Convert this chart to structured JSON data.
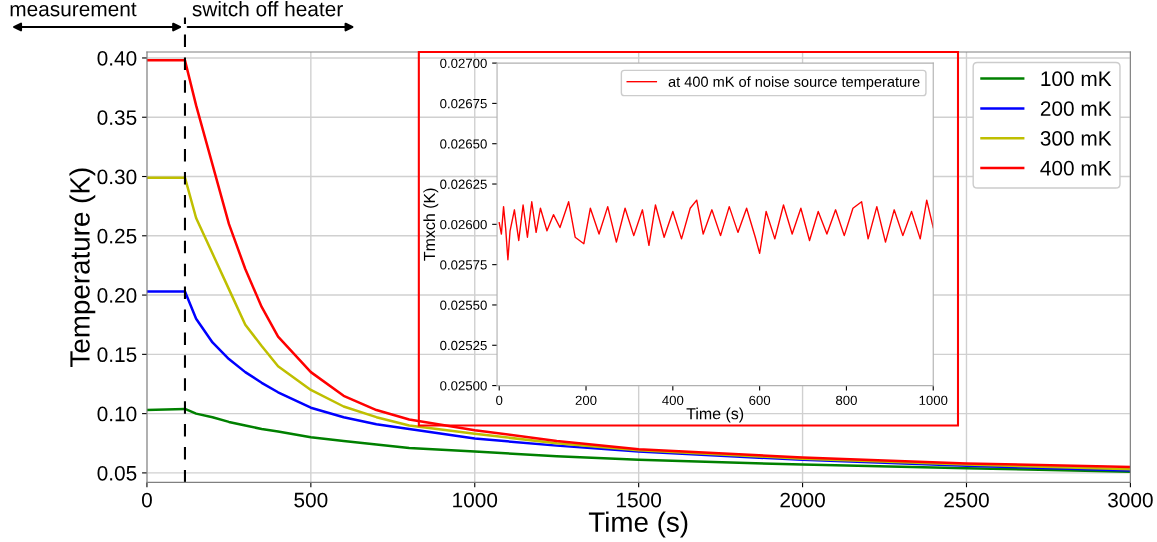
{
  "chart_data": [
    {
      "type": "line",
      "xlabel": "Time (s)",
      "ylabel": "Temperature (K)",
      "xlim": [
        0,
        3000
      ],
      "ylim": [
        0.042,
        0.405
      ],
      "xticks": [
        0,
        500,
        1000,
        1500,
        2000,
        2500,
        3000
      ],
      "yticks": [
        {
          "value": 0.05,
          "label": "0.05"
        },
        {
          "value": 0.1,
          "label": "0.10"
        },
        {
          "value": 0.15,
          "label": "0.15"
        },
        {
          "value": 0.2,
          "label": "0.20"
        },
        {
          "value": 0.25,
          "label": "0.25"
        },
        {
          "value": 0.3,
          "label": "0.30"
        },
        {
          "value": 0.35,
          "label": "0.35"
        },
        {
          "value": 0.4,
          "label": "0.40"
        }
      ],
      "grid": true,
      "legend": "top right",
      "line_style": "solid",
      "marker": "none",
      "x": [
        0,
        116,
        150,
        200,
        250,
        300,
        350,
        400,
        500,
        600,
        700,
        800,
        1000,
        1250,
        1500,
        2000,
        2500,
        3000
      ],
      "series": [
        {
          "name": "100 mK",
          "color": "#008000",
          "values": [
            0.103,
            0.104,
            0.1,
            0.097,
            0.093,
            0.09,
            0.087,
            0.085,
            0.08,
            0.077,
            0.074,
            0.071,
            0.068,
            0.064,
            0.061,
            0.057,
            0.054,
            0.051
          ]
        },
        {
          "name": "200 mK",
          "color": "#0000ff",
          "values": [
            0.203,
            0.203,
            0.18,
            0.16,
            0.146,
            0.135,
            0.126,
            0.118,
            0.105,
            0.097,
            0.091,
            0.087,
            0.079,
            0.073,
            0.068,
            0.061,
            0.056,
            0.052
          ]
        },
        {
          "name": "300 mK",
          "color": "#bfbf00",
          "values": [
            0.299,
            0.299,
            0.265,
            0.235,
            0.205,
            0.175,
            0.157,
            0.14,
            0.12,
            0.106,
            0.097,
            0.09,
            0.083,
            0.075,
            0.069,
            0.062,
            0.057,
            0.053
          ]
        },
        {
          "name": "400 mK",
          "color": "#ff0000",
          "values": [
            0.398,
            0.398,
            0.36,
            0.31,
            0.26,
            0.222,
            0.19,
            0.165,
            0.135,
            0.115,
            0.103,
            0.095,
            0.086,
            0.077,
            0.07,
            0.063,
            0.058,
            0.055
          ]
        }
      ],
      "ref_lines": [
        {
          "axis": "x",
          "value": 116,
          "color": "#000000",
          "line_style": "dashed"
        }
      ],
      "annotations": [
        "measurement",
        "switch off heater"
      ]
    },
    {
      "type": "line",
      "xlabel": "Time (s)",
      "ylabel": "Tmxch (K)",
      "xlim": [
        -5,
        1000
      ],
      "ylim": [
        0.025,
        0.027
      ],
      "xticks": [
        0,
        200,
        400,
        600,
        800,
        1000
      ],
      "yticks": [
        {
          "value": 0.025,
          "label": "0.02500"
        },
        {
          "value": 0.02525,
          "label": "0.02525"
        },
        {
          "value": 0.0255,
          "label": "0.02550"
        },
        {
          "value": 0.02575,
          "label": "0.02575"
        },
        {
          "value": 0.026,
          "label": "0.02600"
        },
        {
          "value": 0.02625,
          "label": "0.02625"
        },
        {
          "value": 0.0265,
          "label": "0.02650"
        },
        {
          "value": 0.02675,
          "label": "0.02675"
        },
        {
          "value": 0.027,
          "label": "0.02700"
        }
      ],
      "grid": false,
      "legend": "top right",
      "line_style": "solid",
      "marker": "none",
      "x": [
        0,
        5,
        10,
        15,
        20,
        25,
        35,
        45,
        55,
        65,
        75,
        85,
        95,
        110,
        125,
        140,
        160,
        175,
        195,
        210,
        230,
        250,
        270,
        290,
        310,
        330,
        345,
        360,
        380,
        400,
        420,
        440,
        455,
        470,
        490,
        510,
        530,
        550,
        570,
        590,
        600,
        615,
        635,
        655,
        675,
        695,
        715,
        735,
        755,
        775,
        795,
        815,
        835,
        850,
        870,
        890,
        910,
        930,
        950,
        970,
        985,
        1000
      ],
      "series": [
        {
          "name": "at 400 mK of noise source temperature",
          "color": "#ff0000",
          "values": [
            0.02601,
            0.02594,
            0.02611,
            0.02597,
            0.02578,
            0.02596,
            0.02609,
            0.0259,
            0.02612,
            0.02592,
            0.02614,
            0.02595,
            0.0261,
            0.02596,
            0.02606,
            0.02598,
            0.02614,
            0.02592,
            0.02588,
            0.0261,
            0.02594,
            0.02611,
            0.02589,
            0.0261,
            0.02593,
            0.02609,
            0.02587,
            0.02612,
            0.02592,
            0.02608,
            0.02591,
            0.0261,
            0.02615,
            0.02594,
            0.02609,
            0.02593,
            0.02611,
            0.02595,
            0.0261,
            0.02592,
            0.02582,
            0.02608,
            0.02591,
            0.02612,
            0.02594,
            0.0261,
            0.0259,
            0.02608,
            0.02594,
            0.02609,
            0.02593,
            0.0261,
            0.02614,
            0.02591,
            0.02611,
            0.02589,
            0.02609,
            0.02593,
            0.02608,
            0.02591,
            0.02615,
            0.02598
          ]
        }
      ]
    }
  ]
}
